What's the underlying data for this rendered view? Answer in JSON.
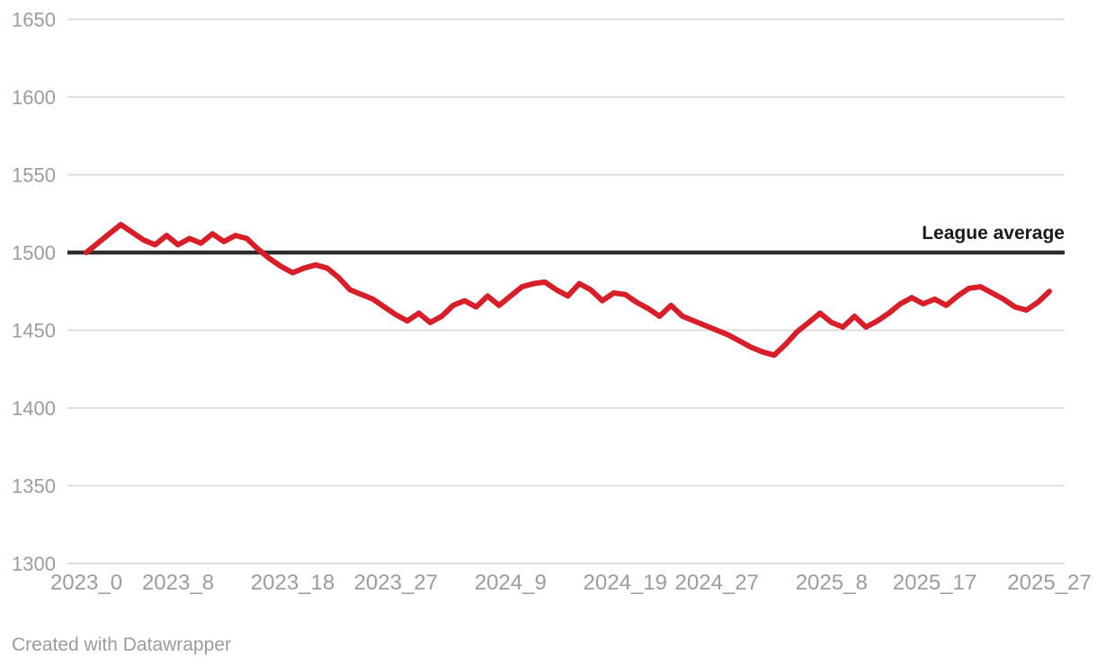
{
  "chart_data": {
    "type": "line",
    "title": "",
    "xlabel": "",
    "ylabel": "",
    "grid": true,
    "ylim": [
      1300,
      1650
    ],
    "y_ticks": [
      1650,
      1600,
      1550,
      1500,
      1450,
      1400,
      1350,
      1300
    ],
    "x_tick_indices": [
      0,
      8,
      18,
      27,
      37,
      47,
      55,
      65,
      74,
      84
    ],
    "x_tick_labels_visible": [
      "2023_0",
      "2023_8",
      "2023_18",
      "2023_27",
      "2024_9",
      "2024_19",
      "2024_27",
      "2025_8",
      "2025_17",
      "2025_27"
    ],
    "x": [
      "2023_0",
      "2023_1",
      "2023_2",
      "2023_3",
      "2023_4",
      "2023_5",
      "2023_6",
      "2023_7",
      "2023_8",
      "2023_9",
      "2023_10",
      "2023_11",
      "2023_12",
      "2023_13",
      "2023_14",
      "2023_15",
      "2023_16",
      "2023_17",
      "2023_18",
      "2023_19",
      "2023_20",
      "2023_21",
      "2023_22",
      "2023_23",
      "2023_24",
      "2023_25",
      "2023_26",
      "2023_27",
      "2024_0",
      "2024_1",
      "2024_2",
      "2024_3",
      "2024_4",
      "2024_5",
      "2024_6",
      "2024_7",
      "2024_8",
      "2024_9",
      "2024_10",
      "2024_11",
      "2024_12",
      "2024_13",
      "2024_14",
      "2024_15",
      "2024_16",
      "2024_17",
      "2024_18",
      "2024_19",
      "2024_20",
      "2024_21",
      "2024_22",
      "2024_23",
      "2024_24",
      "2024_25",
      "2024_26",
      "2024_27",
      "2024_28",
      "2025_0",
      "2025_1",
      "2025_2",
      "2025_3",
      "2025_4",
      "2025_5",
      "2025_6",
      "2025_7",
      "2025_8",
      "2025_9",
      "2025_10",
      "2025_11",
      "2025_12",
      "2025_13",
      "2025_14",
      "2025_15",
      "2025_16",
      "2025_17",
      "2025_18",
      "2025_19",
      "2025_20",
      "2025_21",
      "2025_22",
      "2025_23",
      "2025_24",
      "2025_25",
      "2025_26",
      "2025_27"
    ],
    "series": [
      {
        "name": "rating",
        "color": "#d81e28",
        "values": [
          1500,
          1506,
          1512,
          1518,
          1513,
          1508,
          1505,
          1511,
          1505,
          1509,
          1506,
          1512,
          1507,
          1511,
          1509,
          1502,
          1496,
          1491,
          1487,
          1490,
          1492,
          1490,
          1484,
          1476,
          1473,
          1470,
          1465,
          1460,
          1456,
          1461,
          1455,
          1459,
          1466,
          1469,
          1465,
          1472,
          1466,
          1472,
          1478,
          1480,
          1481,
          1476,
          1472,
          1480,
          1476,
          1469,
          1474,
          1473,
          1468,
          1464,
          1459,
          1466,
          1459,
          1456,
          1453,
          1450,
          1447,
          1443,
          1439,
          1436,
          1434,
          1441,
          1449,
          1455,
          1461,
          1455,
          1452,
          1459,
          1452,
          1456,
          1461,
          1467,
          1471,
          1467,
          1470,
          1466,
          1472,
          1477,
          1478,
          1474,
          1470,
          1465,
          1463,
          1468,
          1475
        ]
      }
    ],
    "reference_line": {
      "label": "League average",
      "value": 1500,
      "color": "#2d2d2d"
    },
    "legend_position": "none"
  },
  "annotation": {
    "league_average_label": "League average"
  },
  "footer": {
    "credit": "Created with Datawrapper"
  },
  "style": {
    "grid_color": "#dedede",
    "tick_text_color": "#9c9c9c",
    "line_color": "#d81e28",
    "reference_color": "#2d2d2d",
    "background": "#ffffff"
  }
}
